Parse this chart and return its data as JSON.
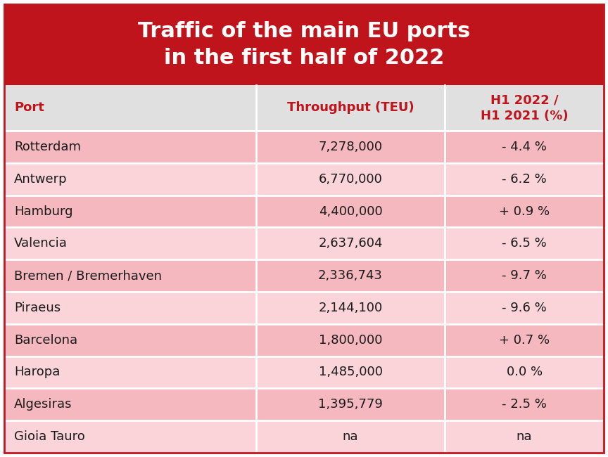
{
  "title_line1": "Traffic of the main EU ports",
  "title_line2": "in the first half of 2022",
  "title_bg_color": "#c0141c",
  "title_text_color": "#ffffff",
  "header_bg_color": "#e0e0e0",
  "header_text_color": "#c0141c",
  "col_headers": [
    "Port",
    "Throughput (TEU)",
    "H1 2022 /\nH1 2021 (%)"
  ],
  "row_text_color": "#1a1a1a",
  "ports": [
    "Rotterdam",
    "Antwerp",
    "Hamburg",
    "Valencia",
    "Bremen / Bremerhaven",
    "Piraeus",
    "Barcelona",
    "Haropa",
    "Algesiras",
    "Gioia Tauro"
  ],
  "throughput": [
    "7,278,000",
    "6,770,000",
    "4,400,000",
    "2,637,604",
    "2,336,743",
    "2,144,100",
    "1,800,000",
    "1,485,000",
    "1,395,779",
    "na"
  ],
  "change": [
    "- 4.4 %",
    "- 6.2 %",
    "+ 0.9 %",
    "- 6.5 %",
    "- 9.7 %",
    "- 9.6 %",
    "+ 0.7 %",
    "0.0 %",
    "- 2.5 %",
    "na"
  ],
  "row_colors": [
    "#f5b8be",
    "#fad4d8",
    "#f5b8be",
    "#fad4d8",
    "#f5b8be",
    "#fad4d8",
    "#f5b8be",
    "#fad4d8",
    "#f5b8be",
    "#fad4d8"
  ],
  "outer_border_color": "#c0141c",
  "figsize": [
    8.64,
    6.5
  ],
  "dpi": 100
}
